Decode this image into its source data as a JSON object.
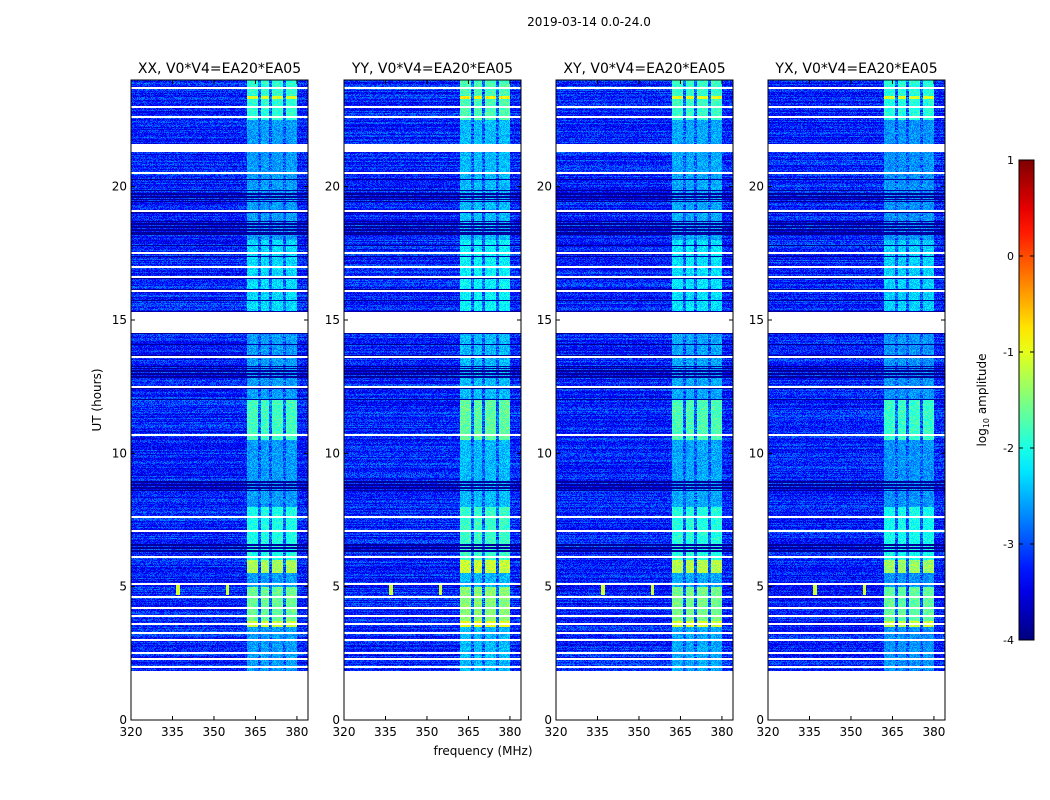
{
  "chart_data": {
    "type": "heatmap",
    "suptitle": "2019-03-14 0.0-24.0",
    "xlabel": "frequency (MHz)",
    "ylabel": "UT (hours)",
    "xlim": [
      320,
      384
    ],
    "ylim": [
      0,
      24
    ],
    "xticks": [
      320,
      335,
      350,
      365,
      380
    ],
    "yticks": [
      0,
      5,
      10,
      15,
      20
    ],
    "panels": [
      {
        "title": "XX, V0*V4=EA20*EA05",
        "band_boost": 0.0
      },
      {
        "title": "YY, V0*V4=EA20*EA05",
        "band_boost": 0.15
      },
      {
        "title": "XY, V0*V4=EA20*EA05",
        "band_boost": 0.05
      },
      {
        "title": "YX, V0*V4=EA20*EA05",
        "band_boost": -0.05
      }
    ],
    "colorbar": {
      "label": "log10 amplitude",
      "label_main": "log",
      "label_sub": "10",
      "label_rest": " amplitude",
      "colormap": "jet",
      "range": [
        -4,
        1
      ],
      "ticks": [
        1,
        0,
        -1,
        -2,
        -3,
        -4
      ]
    },
    "data_model": {
      "time_coverage_hours": [
        1.8,
        24.0
      ],
      "background_log10_amp": -3.2,
      "rfi_band_mhz": [
        362,
        380
      ],
      "rfi_band_gaps_mhz": [
        366.5,
        370.5,
        375.5
      ],
      "flagged_gaps_hours": [
        [
          14.5,
          15.3
        ],
        [
          21.3,
          21.6
        ],
        [
          5.05,
          5.15
        ],
        [
          1.78,
          1.82
        ]
      ],
      "flagged_lines_hours": [
        2.0,
        2.3,
        2.5,
        3.0,
        3.25,
        3.6,
        3.9,
        4.2,
        4.6,
        6.1,
        7.1,
        7.6,
        10.7,
        12.5,
        13.6,
        16.1,
        16.6,
        17.0,
        17.5,
        19.1,
        20.5,
        22.6,
        23.0,
        23.7
      ],
      "dark_bands_hours": [
        [
          8.6,
          9.0
        ],
        [
          18.2,
          18.7
        ],
        [
          6.3,
          6.6
        ],
        [
          12.8,
          13.2
        ],
        [
          19.5,
          19.8
        ]
      ],
      "band_levels": [
        {
          "hours": [
            3.5,
            3.7
          ],
          "level": -1.1
        },
        {
          "hours": [
            3.7,
            5.0
          ],
          "level": -1.6
        },
        {
          "hours": [
            5.5,
            6.0
          ],
          "level": -1.3
        },
        {
          "hours": [
            6.0,
            8.0
          ],
          "level": -2.0
        },
        {
          "hours": [
            10.5,
            12.0
          ],
          "level": -1.8
        },
        {
          "hours": [
            15.3,
            18.0
          ],
          "level": -2.3
        },
        {
          "hours": [
            22.5,
            24.0
          ],
          "level": -1.9
        },
        {
          "hours": [
            23.3,
            23.4
          ],
          "level": -1.0
        }
      ],
      "point_sources": [
        {
          "mhz": 337,
          "hours": 4.9
        },
        {
          "mhz": 355,
          "hours": 4.9
        }
      ]
    }
  }
}
